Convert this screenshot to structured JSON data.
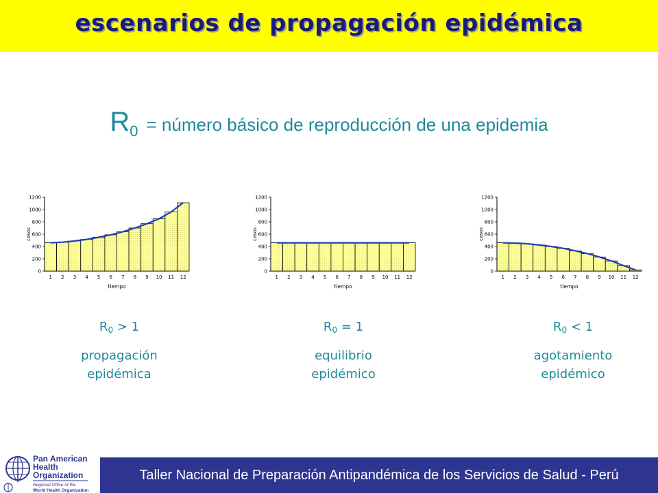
{
  "banner": {
    "title": "escenarios de propagación epidémica",
    "color": "#ffff00"
  },
  "headline": {
    "symbol": "R",
    "subscript": "0",
    "text": "= número básico de reproducción de una epidemia"
  },
  "chart_data": [
    {
      "type": "bar",
      "categories": [
        "1",
        "2",
        "3",
        "4",
        "5",
        "6",
        "7",
        "8",
        "9",
        "10",
        "11",
        "12"
      ],
      "values": [
        460,
        470,
        490,
        515,
        550,
        590,
        640,
        700,
        770,
        850,
        960,
        1110
      ],
      "xlabel": "tiempo",
      "ylabel": "casos",
      "ylim": [
        0,
        1200
      ],
      "yticks": [
        "0",
        "200",
        "400",
        "600",
        "800",
        "1000",
        "1200"
      ],
      "bar_color": "#ffff99",
      "line_color": "#1f3fb8"
    },
    {
      "type": "bar",
      "categories": [
        "1",
        "2",
        "3",
        "4",
        "5",
        "6",
        "7",
        "8",
        "9",
        "10",
        "11",
        "12"
      ],
      "values": [
        460,
        460,
        460,
        460,
        460,
        460,
        460,
        460,
        460,
        460,
        460,
        460
      ],
      "xlabel": "tiempo",
      "ylabel": "casos",
      "ylim": [
        0,
        1200
      ],
      "yticks": [
        "0",
        "200",
        "400",
        "600",
        "800",
        "1000",
        "1200"
      ],
      "bar_color": "#ffff99",
      "line_color": "#1f3fb8"
    },
    {
      "type": "bar",
      "categories": [
        "1",
        "2",
        "3",
        "4",
        "5",
        "6",
        "7",
        "8",
        "9",
        "10",
        "11",
        "12"
      ],
      "values": [
        460,
        455,
        445,
        425,
        400,
        370,
        330,
        285,
        230,
        165,
        90,
        20
      ],
      "xlabel": "tiempo",
      "ylabel": "casos",
      "ylim": [
        0,
        1200
      ],
      "yticks": [
        "0",
        "200",
        "400",
        "600",
        "800",
        "1000",
        "1200"
      ],
      "bar_color": "#ffff99",
      "line_color": "#1f3fb8"
    }
  ],
  "scenarios": [
    {
      "r": "R",
      "sub": "0",
      "relation": "> 1",
      "line1": "propagación",
      "line2": "epidémica"
    },
    {
      "r": "R",
      "sub": "0",
      "relation": "= 1",
      "line1": "equilibrio",
      "line2": "epidémico"
    },
    {
      "r": "R",
      "sub": "0",
      "relation": "< 1",
      "line1": "agotamiento",
      "line2": "epidémico"
    }
  ],
  "logo": {
    "line1": "Pan American",
    "line2": "Health",
    "line3": "Organization",
    "sub1": "Regional Office of the",
    "sub2": "World Health Organization"
  },
  "footer": {
    "text": "Taller Nacional de Preparación Antipandémica de los Servicios de Salud - Perú",
    "color": "#2d3590"
  }
}
